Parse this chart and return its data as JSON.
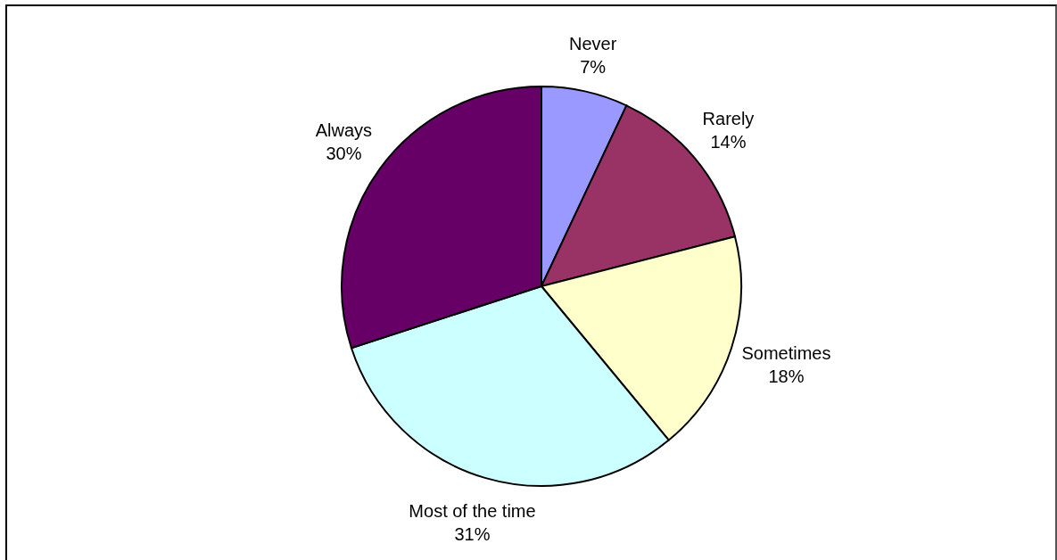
{
  "chart_data": {
    "type": "pie",
    "categories": [
      "Never",
      "Rarely",
      "Sometimes",
      "Most of the time",
      "Always"
    ],
    "values": [
      7,
      14,
      18,
      31,
      30
    ],
    "colors": [
      "#9999ff",
      "#993366",
      "#ffffcc",
      "#ccffff",
      "#660066"
    ],
    "value_labels": [
      "7%",
      "14%",
      "18%",
      "31%",
      "30%"
    ]
  }
}
